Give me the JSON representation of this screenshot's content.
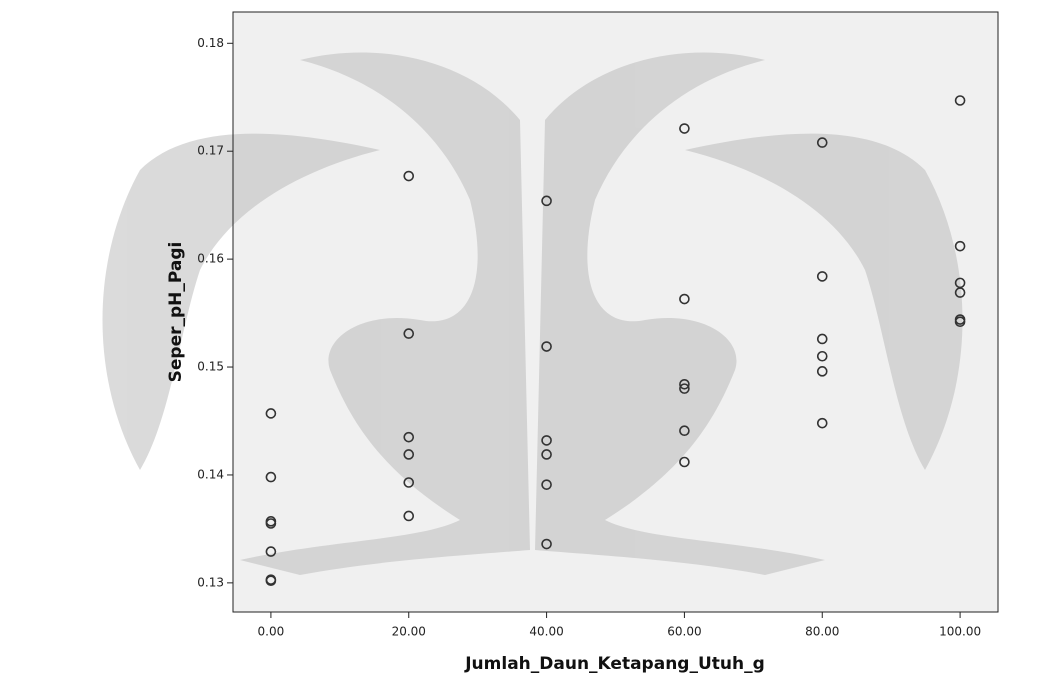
{
  "chart_data": {
    "type": "scatter",
    "x_label": "Jumlah_Daun_Ketapang_Utuh_g",
    "y_label": "Seper_pH_Pagi",
    "x": [
      0,
      0,
      0,
      0,
      0,
      0,
      0,
      20,
      20,
      20,
      20,
      20,
      20,
      40,
      40,
      40,
      40,
      40,
      40,
      60,
      60,
      60,
      60,
      60,
      60,
      80,
      80,
      80,
      80,
      80,
      80,
      100,
      100,
      100,
      100,
      100,
      100
    ],
    "y": [
      0.1457,
      0.1398,
      0.1357,
      0.1355,
      0.1329,
      0.1303,
      0.1302,
      0.1677,
      0.1531,
      0.1435,
      0.1419,
      0.1393,
      0.1362,
      0.1654,
      0.1519,
      0.1432,
      0.1419,
      0.1391,
      0.1336,
      0.1721,
      0.1563,
      0.1484,
      0.148,
      0.1441,
      0.1412,
      0.1708,
      0.1584,
      0.1526,
      0.151,
      0.1496,
      0.1448,
      0.1747,
      0.1612,
      0.1578,
      0.1569,
      0.1544,
      0.1542
    ],
    "marker_color": "#333333",
    "plot_background": "#f0f0f0",
    "xlim": [
      -5.5,
      105.5
    ],
    "xticks": [
      {
        "value": 0,
        "label": "0.00"
      },
      {
        "value": 20,
        "label": "20.00"
      },
      {
        "value": 40,
        "label": "40.00"
      },
      {
        "value": 60,
        "label": "60.00"
      },
      {
        "value": 80,
        "label": "80.00"
      },
      {
        "value": 100,
        "label": "100.00"
      }
    ],
    "ylim": [
      0.1273,
      0.1829
    ],
    "yticks": [
      0.13,
      0.14,
      0.15,
      0.16,
      0.17,
      0.18
    ],
    "grid": false
  }
}
